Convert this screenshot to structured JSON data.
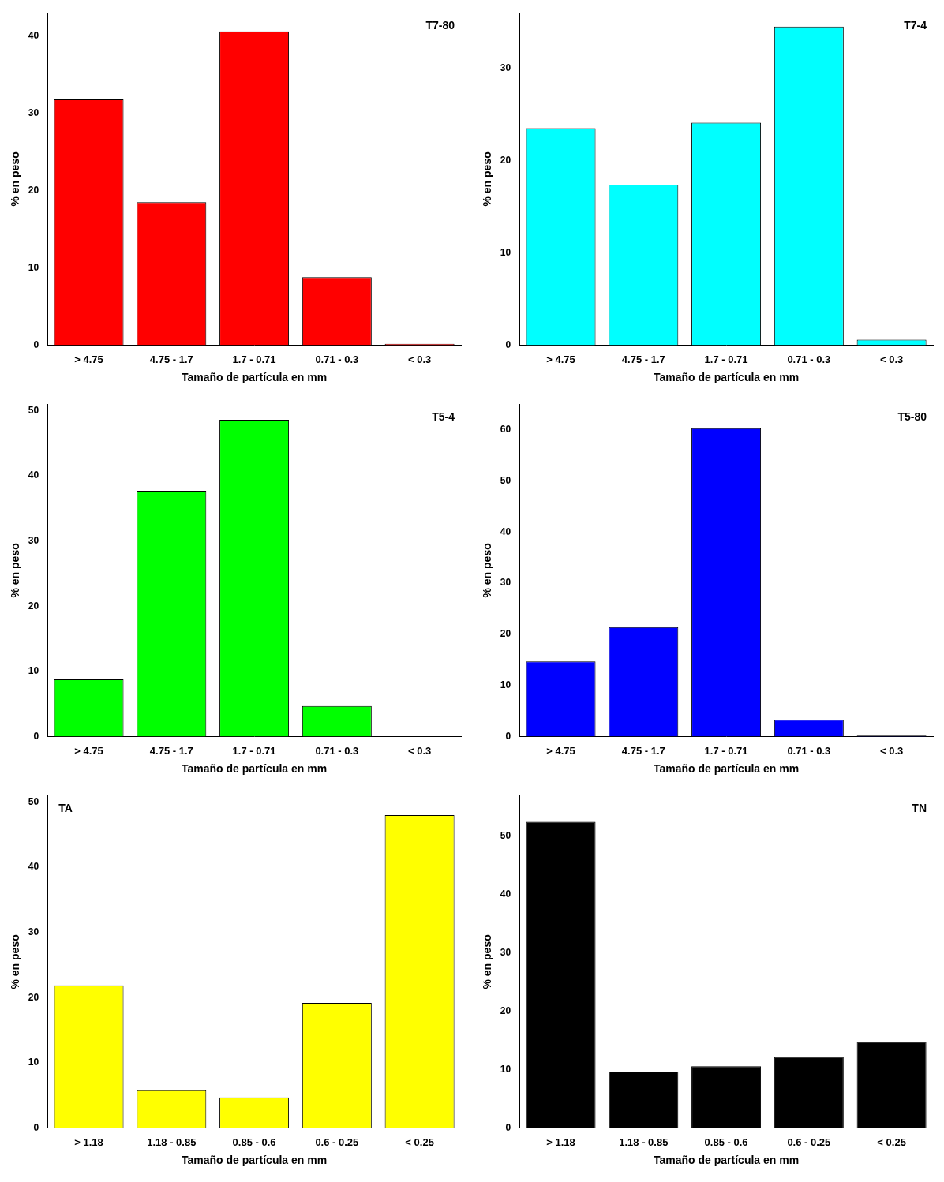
{
  "chart_data": [
    {
      "type": "bar",
      "title": "T7-80",
      "categories": [
        "> 4.75",
        "4.75 - 1.7",
        "1.7 - 0.71",
        "0.71 - 0.3",
        "< 0.3"
      ],
      "values": [
        31.8,
        18.5,
        40.6,
        8.8,
        0.2
      ],
      "color": "#ff0000",
      "ylim": [
        0,
        43
      ],
      "yticks": [
        0,
        10,
        20,
        30,
        40
      ],
      "x_label": "Tamaño de partícula en mm",
      "y_label": "% en peso",
      "grid": false
    },
    {
      "type": "bar",
      "title": "T7-4",
      "categories": [
        "> 4.75",
        "4.75 - 1.7",
        "1.7 - 0.71",
        "0.71 - 0.3",
        "< 0.3"
      ],
      "values": [
        23.5,
        17.4,
        24.1,
        34.5,
        0.6
      ],
      "color": "#00ffff",
      "ylim": [
        0,
        36
      ],
      "yticks": [
        0,
        10,
        20,
        30
      ],
      "x_label": "Tamaño de partícula en mm",
      "y_label": "% en peso",
      "grid": false
    },
    {
      "type": "bar",
      "title": "T5-4",
      "categories": [
        "> 4.75",
        "4.75 - 1.7",
        "1.7 - 0.71",
        "0.71 - 0.3",
        "< 0.3"
      ],
      "values": [
        8.8,
        37.7,
        48.6,
        4.7,
        0
      ],
      "color": "#00ff00",
      "ylim": [
        0,
        51
      ],
      "yticks": [
        0,
        10,
        20,
        30,
        40,
        50
      ],
      "x_label": "Tamaño de partícula en mm",
      "y_label": "% en peso",
      "grid": false
    },
    {
      "type": "bar",
      "title": "T5-80",
      "categories": [
        "> 4.75",
        "4.75 - 1.7",
        "1.7 - 0.71",
        "0.71 - 0.3",
        "< 0.3"
      ],
      "values": [
        14.7,
        21.4,
        60.3,
        3.3,
        0.2
      ],
      "color": "#0000ff",
      "ylim": [
        0,
        65
      ],
      "yticks": [
        0,
        10,
        20,
        30,
        40,
        50,
        60
      ],
      "x_label": "Tamaño de partícula en mm",
      "y_label": "% en peso",
      "grid": false
    },
    {
      "type": "bar",
      "title": "TA",
      "categories": [
        "> 1.18",
        "1.18 - 0.85",
        "0.85 - 0.6",
        "0.6 - 0.25",
        "< 0.25"
      ],
      "values": [
        21.9,
        5.8,
        4.7,
        19.2,
        48.0
      ],
      "color": "#ffff00",
      "ylim": [
        0,
        51
      ],
      "yticks": [
        0,
        10,
        20,
        30,
        40,
        50
      ],
      "x_label": "Tamaño de partícula en mm",
      "y_label": "% en peso",
      "grid": false
    },
    {
      "type": "bar",
      "title": "TN",
      "categories": [
        "> 1.18",
        "1.18 - 0.85",
        "0.85 - 0.6",
        "0.6 - 0.25",
        "< 0.25"
      ],
      "values": [
        52.5,
        9.7,
        10.6,
        12.2,
        14.8
      ],
      "color": "#000000",
      "ylim": [
        0,
        57
      ],
      "yticks": [
        0,
        10,
        20,
        30,
        40,
        50
      ],
      "x_label": "Tamaño de partícula en mm",
      "y_label": "% en peso",
      "grid": false
    }
  ]
}
